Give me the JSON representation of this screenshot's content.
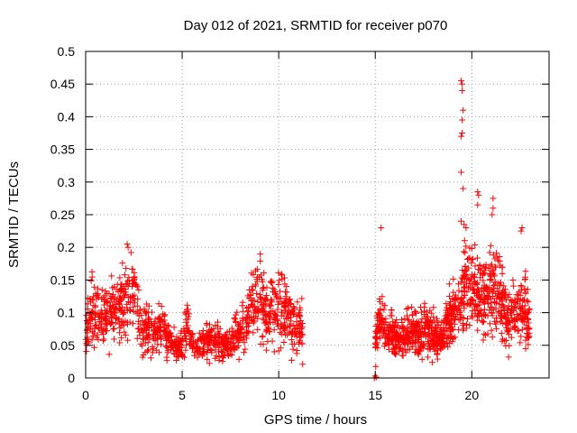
{
  "chart_data": {
    "type": "scatter",
    "title": "Day 012 of 2021, SRMTID for receiver p070",
    "xlabel": "GPS time / hours",
    "ylabel": "SRMTID / TECUs",
    "xlim": [
      0,
      24
    ],
    "ylim": [
      0,
      0.5
    ],
    "xticks": [
      0,
      5,
      10,
      15,
      20
    ],
    "xtick_labels": [
      "0",
      "5",
      "10",
      "15",
      "20"
    ],
    "yticks": [
      0,
      0.05,
      0.1,
      0.15,
      0.2,
      0.25,
      0.3,
      0.35,
      0.4,
      0.45,
      0.5
    ],
    "ytick_labels": [
      "0",
      "0.05",
      "0.1",
      "0.15",
      "0.2",
      "0.25",
      "0.3",
      "0.35",
      "0.4",
      "0.45",
      "0.5"
    ],
    "grid": true,
    "marker": "+",
    "marker_color": "#ff0000",
    "series": [
      {
        "name": "p070",
        "envelope": [
          [
            0.0,
            0.06
          ],
          [
            0.25,
            0.11
          ],
          [
            0.5,
            0.1
          ],
          [
            0.75,
            0.1
          ],
          [
            1.0,
            0.1
          ],
          [
            1.25,
            0.1
          ],
          [
            1.5,
            0.09
          ],
          [
            1.75,
            0.11
          ],
          [
            2.0,
            0.11
          ],
          [
            2.25,
            0.13
          ],
          [
            2.5,
            0.13
          ],
          [
            2.75,
            0.09
          ],
          [
            3.0,
            0.08
          ],
          [
            3.25,
            0.08
          ],
          [
            3.5,
            0.075
          ],
          [
            3.75,
            0.07
          ],
          [
            4.0,
            0.07
          ],
          [
            4.25,
            0.06
          ],
          [
            4.5,
            0.055
          ],
          [
            4.75,
            0.045
          ],
          [
            5.0,
            0.05
          ],
          [
            5.25,
            0.09
          ],
          [
            5.5,
            0.06
          ],
          [
            5.75,
            0.045
          ],
          [
            6.0,
            0.05
          ],
          [
            6.25,
            0.06
          ],
          [
            6.5,
            0.055
          ],
          [
            6.75,
            0.06
          ],
          [
            7.0,
            0.055
          ],
          [
            7.25,
            0.05
          ],
          [
            7.5,
            0.055
          ],
          [
            7.75,
            0.065
          ],
          [
            8.0,
            0.07
          ],
          [
            8.25,
            0.07
          ],
          [
            8.5,
            0.1
          ],
          [
            8.75,
            0.11
          ],
          [
            9.0,
            0.12
          ],
          [
            9.25,
            0.1
          ],
          [
            9.5,
            0.09
          ],
          [
            9.75,
            0.11
          ],
          [
            10.0,
            0.11
          ],
          [
            10.25,
            0.1
          ],
          [
            10.5,
            0.09
          ],
          [
            10.75,
            0.08
          ],
          [
            11.0,
            0.08
          ],
          [
            11.25,
            0.08
          ]
        ],
        "envelope_2": [
          [
            15.0,
            0.06
          ],
          [
            15.25,
            0.09
          ],
          [
            15.5,
            0.07
          ],
          [
            15.75,
            0.065
          ],
          [
            16.0,
            0.065
          ],
          [
            16.25,
            0.06
          ],
          [
            16.5,
            0.065
          ],
          [
            16.75,
            0.07
          ],
          [
            17.0,
            0.07
          ],
          [
            17.25,
            0.06
          ],
          [
            17.5,
            0.075
          ],
          [
            17.75,
            0.07
          ],
          [
            18.0,
            0.07
          ],
          [
            18.25,
            0.06
          ],
          [
            18.5,
            0.06
          ],
          [
            18.75,
            0.09
          ],
          [
            19.0,
            0.09
          ],
          [
            19.25,
            0.11
          ],
          [
            19.5,
            0.12
          ],
          [
            19.75,
            0.15
          ],
          [
            20.0,
            0.13
          ],
          [
            20.25,
            0.12
          ],
          [
            20.5,
            0.12
          ],
          [
            20.75,
            0.12
          ],
          [
            21.0,
            0.13
          ],
          [
            21.25,
            0.14
          ],
          [
            21.5,
            0.11
          ],
          [
            21.75,
            0.1
          ],
          [
            22.0,
            0.095
          ],
          [
            22.25,
            0.1
          ],
          [
            22.5,
            0.1
          ],
          [
            22.75,
            0.1
          ],
          [
            23.0,
            0.09
          ]
        ],
        "outliers": [
          [
            19.45,
            0.455
          ],
          [
            19.5,
            0.45
          ],
          [
            19.5,
            0.44
          ],
          [
            19.55,
            0.41
          ],
          [
            19.5,
            0.395
          ],
          [
            19.45,
            0.37
          ],
          [
            19.5,
            0.375
          ],
          [
            19.45,
            0.315
          ],
          [
            19.55,
            0.29
          ],
          [
            19.45,
            0.24
          ],
          [
            19.6,
            0.235
          ],
          [
            19.7,
            0.23
          ],
          [
            20.3,
            0.285
          ],
          [
            20.35,
            0.28
          ],
          [
            20.3,
            0.265
          ],
          [
            21.1,
            0.275
          ],
          [
            21.1,
            0.26
          ],
          [
            21.05,
            0.25
          ],
          [
            15.3,
            0.23
          ],
          [
            22.6,
            0.23
          ],
          [
            22.55,
            0.225
          ],
          [
            2.15,
            0.205
          ],
          [
            2.2,
            0.2
          ],
          [
            15.0,
            0.003
          ],
          [
            14.95,
            0.0
          ],
          [
            15.05,
            0.001
          ]
        ]
      }
    ]
  }
}
